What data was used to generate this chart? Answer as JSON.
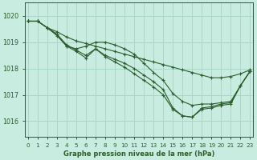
{
  "title": "Graphe pression niveau de la mer (hPa)",
  "bg_color": "#c8ece0",
  "grid_color": "#a8d8c8",
  "line_color": "#2a5e2a",
  "x_ticks": [
    0,
    1,
    2,
    3,
    4,
    5,
    6,
    7,
    8,
    9,
    10,
    11,
    12,
    13,
    14,
    15,
    16,
    17,
    18,
    19,
    20,
    21,
    22,
    23
  ],
  "y_ticks": [
    1016,
    1017,
    1018,
    1019,
    1020
  ],
  "ylim": [
    1015.4,
    1020.5
  ],
  "xlim": [
    -0.3,
    23.3
  ],
  "series": [
    [
      1019.8,
      1019.8,
      1019.55,
      1019.4,
      1019.2,
      1019.05,
      1018.95,
      1018.85,
      1018.75,
      1018.65,
      1018.55,
      1018.45,
      1018.35,
      1018.25,
      1018.15,
      1018.05,
      1017.95,
      1017.85,
      1017.75,
      1017.65,
      1017.65,
      1017.7,
      1017.8,
      1017.95
    ],
    [
      1019.8,
      1019.8,
      1019.55,
      1019.3,
      1018.85,
      1018.75,
      1018.85,
      1019.0,
      1019.0,
      1018.9,
      1018.75,
      1018.55,
      1018.2,
      1017.85,
      1017.55,
      1017.05,
      1016.75,
      1016.6,
      1016.65,
      1016.65,
      1016.7,
      1016.75,
      1017.35,
      1017.9
    ],
    [
      1019.8,
      1019.8,
      1019.55,
      1019.25,
      1018.85,
      1018.65,
      1018.4,
      1018.75,
      1018.45,
      1018.25,
      1018.05,
      1017.8,
      1017.55,
      1017.3,
      1017.0,
      1016.45,
      1016.2,
      1016.15,
      1016.45,
      1016.5,
      1016.6,
      1016.65,
      1017.35,
      1017.9
    ],
    [
      1019.8,
      1019.8,
      1019.55,
      1019.3,
      1018.9,
      1018.7,
      1018.5,
      1018.75,
      1018.5,
      1018.35,
      1018.2,
      1018.0,
      1017.75,
      1017.5,
      1017.2,
      1016.5,
      1016.2,
      1016.15,
      1016.5,
      1016.55,
      1016.65,
      1016.7,
      1017.35,
      1017.9
    ]
  ]
}
